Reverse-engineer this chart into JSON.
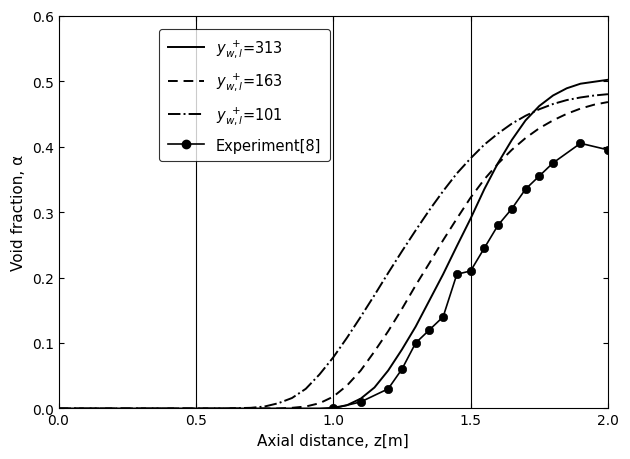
{
  "xlim": [
    0.0,
    2.0
  ],
  "ylim": [
    0.0,
    0.6
  ],
  "xlabel": "Axial distance, z[m]",
  "ylabel": "Void fraction, α",
  "xticks": [
    0.0,
    0.5,
    1.0,
    1.5,
    2.0
  ],
  "yticks": [
    0.0,
    0.1,
    0.2,
    0.3,
    0.4,
    0.5,
    0.6
  ],
  "vlines": [
    0.5,
    1.0,
    1.5
  ],
  "curve313_x": [
    0.0,
    0.8,
    0.9,
    0.95,
    1.0,
    1.05,
    1.1,
    1.15,
    1.2,
    1.25,
    1.3,
    1.35,
    1.4,
    1.45,
    1.5,
    1.55,
    1.6,
    1.65,
    1.7,
    1.75,
    1.8,
    1.85,
    1.9,
    1.95,
    2.0
  ],
  "curve313_y": [
    0.0,
    0.0,
    0.0,
    0.0,
    0.001,
    0.005,
    0.015,
    0.032,
    0.058,
    0.09,
    0.125,
    0.165,
    0.205,
    0.248,
    0.29,
    0.335,
    0.375,
    0.41,
    0.44,
    0.462,
    0.478,
    0.489,
    0.496,
    0.499,
    0.502
  ],
  "curve163_x": [
    0.0,
    0.7,
    0.8,
    0.85,
    0.9,
    0.95,
    1.0,
    1.05,
    1.1,
    1.15,
    1.2,
    1.25,
    1.3,
    1.35,
    1.4,
    1.45,
    1.5,
    1.55,
    1.6,
    1.65,
    1.7,
    1.75,
    1.8,
    1.85,
    1.9,
    1.95,
    2.0
  ],
  "curve163_y": [
    0.0,
    0.0,
    0.0,
    0.001,
    0.003,
    0.008,
    0.018,
    0.035,
    0.058,
    0.087,
    0.118,
    0.152,
    0.188,
    0.222,
    0.257,
    0.29,
    0.322,
    0.35,
    0.374,
    0.395,
    0.413,
    0.428,
    0.44,
    0.45,
    0.458,
    0.464,
    0.468
  ],
  "curve101_x": [
    0.0,
    0.6,
    0.7,
    0.75,
    0.8,
    0.85,
    0.9,
    0.95,
    1.0,
    1.05,
    1.1,
    1.15,
    1.2,
    1.25,
    1.3,
    1.35,
    1.4,
    1.45,
    1.5,
    1.55,
    1.6,
    1.65,
    1.7,
    1.75,
    1.8,
    1.85,
    1.9,
    1.95,
    2.0
  ],
  "curve101_y": [
    0.0,
    0.0,
    0.001,
    0.003,
    0.008,
    0.016,
    0.03,
    0.052,
    0.078,
    0.108,
    0.14,
    0.173,
    0.207,
    0.24,
    0.272,
    0.303,
    0.332,
    0.359,
    0.382,
    0.403,
    0.42,
    0.435,
    0.447,
    0.457,
    0.465,
    0.471,
    0.475,
    0.478,
    0.48
  ],
  "exp_x": [
    1.0,
    1.1,
    1.2,
    1.25,
    1.3,
    1.35,
    1.4,
    1.45,
    1.5,
    1.55,
    1.6,
    1.65,
    1.7,
    1.75,
    1.8,
    1.9,
    2.0
  ],
  "exp_y": [
    0.0,
    0.01,
    0.03,
    0.06,
    0.1,
    0.12,
    0.14,
    0.205,
    0.21,
    0.245,
    0.28,
    0.305,
    0.335,
    0.355,
    0.375,
    0.405,
    0.395
  ],
  "line_color": "#000000",
  "background_color": "#ffffff",
  "figsize": [
    6.3,
    4.6
  ],
  "dpi": 100
}
